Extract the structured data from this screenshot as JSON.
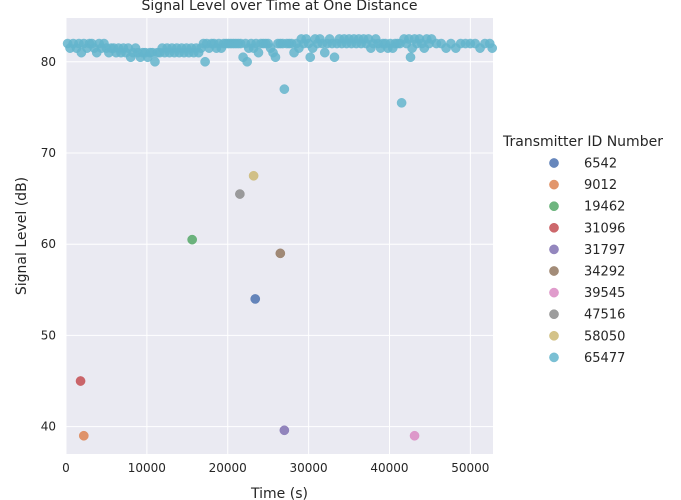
{
  "chart_data": {
    "type": "scatter",
    "title": "Signal Level over Time at One Distance",
    "xlabel": "Time (s)",
    "ylabel": "Signal Level (dB)",
    "xlim": [
      0,
      52800
    ],
    "ylim": [
      37,
      84.8
    ],
    "xticks": [
      0,
      10000,
      20000,
      30000,
      40000,
      50000
    ],
    "xtick_labels": [
      "0",
      "10000",
      "20000",
      "30000",
      "40000",
      "50000"
    ],
    "yticks": [
      40,
      50,
      60,
      70,
      80
    ],
    "ytick_labels": [
      "40",
      "50",
      "60",
      "70",
      "80"
    ],
    "grid": true,
    "legend": {
      "title": "Transmitter ID Number",
      "placement": "right"
    },
    "series": [
      {
        "name": "6542",
        "color": "#4c72b0",
        "points": [
          [
            23400,
            54
          ]
        ]
      },
      {
        "name": "9012",
        "color": "#dd8452",
        "points": [
          [
            2200,
            39
          ]
        ]
      },
      {
        "name": "19462",
        "color": "#55a868",
        "points": [
          [
            15600,
            60.5
          ]
        ]
      },
      {
        "name": "31096",
        "color": "#c44e52",
        "points": [
          [
            1800,
            45
          ]
        ]
      },
      {
        "name": "31797",
        "color": "#8172b3",
        "points": [
          [
            27000,
            39.6
          ]
        ]
      },
      {
        "name": "34292",
        "color": "#937860",
        "points": [
          [
            26500,
            59
          ]
        ]
      },
      {
        "name": "39545",
        "color": "#da8bc3",
        "points": [
          [
            43100,
            39
          ]
        ]
      },
      {
        "name": "47516",
        "color": "#8c8c8c",
        "points": [
          [
            21500,
            65.5
          ]
        ]
      },
      {
        "name": "58050",
        "color": "#ccb974",
        "points": [
          [
            23200,
            67.5
          ]
        ]
      },
      {
        "name": "65477",
        "color": "#64b5cd",
        "points": [
          [
            200,
            82
          ],
          [
            500,
            81.5
          ],
          [
            900,
            82
          ],
          [
            1300,
            81.5
          ],
          [
            1600,
            82
          ],
          [
            1900,
            81
          ],
          [
            2200,
            82
          ],
          [
            2600,
            81.5
          ],
          [
            2900,
            82
          ],
          [
            3200,
            82
          ],
          [
            3500,
            81.5
          ],
          [
            3800,
            81
          ],
          [
            4100,
            82
          ],
          [
            4400,
            81.5
          ],
          [
            4700,
            82
          ],
          [
            5000,
            81.5
          ],
          [
            5300,
            81
          ],
          [
            5600,
            81.5
          ],
          [
            5900,
            81.5
          ],
          [
            6200,
            81
          ],
          [
            6500,
            81.5
          ],
          [
            6800,
            81
          ],
          [
            7100,
            81.5
          ],
          [
            7400,
            81
          ],
          [
            7700,
            81.5
          ],
          [
            8000,
            80.5
          ],
          [
            8300,
            81
          ],
          [
            8600,
            81.5
          ],
          [
            8900,
            81
          ],
          [
            9200,
            80.5
          ],
          [
            9500,
            81
          ],
          [
            9800,
            81
          ],
          [
            10100,
            80.5
          ],
          [
            10400,
            81
          ],
          [
            10700,
            81
          ],
          [
            11000,
            80
          ],
          [
            11300,
            81
          ],
          [
            11600,
            81
          ],
          [
            11900,
            81.5
          ],
          [
            12200,
            81
          ],
          [
            12500,
            81.5
          ],
          [
            12800,
            81
          ],
          [
            13100,
            81.5
          ],
          [
            13400,
            81
          ],
          [
            13700,
            81.5
          ],
          [
            14000,
            81
          ],
          [
            14300,
            81.5
          ],
          [
            14600,
            81
          ],
          [
            14900,
            81.5
          ],
          [
            15200,
            81
          ],
          [
            15500,
            81.5
          ],
          [
            15800,
            81
          ],
          [
            16100,
            81.5
          ],
          [
            16400,
            81
          ],
          [
            16700,
            81.5
          ],
          [
            17000,
            82
          ],
          [
            17200,
            80
          ],
          [
            17400,
            82
          ],
          [
            17700,
            81.5
          ],
          [
            18000,
            82
          ],
          [
            18300,
            82
          ],
          [
            18600,
            81.5
          ],
          [
            18900,
            82
          ],
          [
            19200,
            81.5
          ],
          [
            19500,
            82
          ],
          [
            19800,
            82
          ],
          [
            20100,
            82
          ],
          [
            20400,
            82
          ],
          [
            20700,
            82
          ],
          [
            21000,
            82
          ],
          [
            21300,
            82
          ],
          [
            21600,
            82
          ],
          [
            21900,
            80.5
          ],
          [
            22200,
            82
          ],
          [
            22400,
            80
          ],
          [
            22600,
            81.5
          ],
          [
            22900,
            82
          ],
          [
            23200,
            81.5
          ],
          [
            23500,
            82
          ],
          [
            23800,
            81
          ],
          [
            24100,
            82
          ],
          [
            24400,
            82
          ],
          [
            24700,
            82
          ],
          [
            25000,
            82
          ],
          [
            25300,
            81.5
          ],
          [
            25600,
            81
          ],
          [
            25900,
            80.5
          ],
          [
            26200,
            82
          ],
          [
            26500,
            82
          ],
          [
            26800,
            82
          ],
          [
            27000,
            77
          ],
          [
            27300,
            82
          ],
          [
            27600,
            82
          ],
          [
            27900,
            82
          ],
          [
            28200,
            81
          ],
          [
            28500,
            82
          ],
          [
            28800,
            81.5
          ],
          [
            29100,
            82.5
          ],
          [
            29400,
            82
          ],
          [
            29700,
            82.5
          ],
          [
            30000,
            82
          ],
          [
            30200,
            80.5
          ],
          [
            30500,
            81.5
          ],
          [
            30800,
            82.5
          ],
          [
            31100,
            82
          ],
          [
            31400,
            82.5
          ],
          [
            31700,
            82
          ],
          [
            32000,
            81
          ],
          [
            32300,
            82
          ],
          [
            32600,
            82.5
          ],
          [
            32900,
            82
          ],
          [
            33200,
            80.5
          ],
          [
            33500,
            82
          ],
          [
            33800,
            82.5
          ],
          [
            34100,
            82
          ],
          [
            34400,
            82.5
          ],
          [
            34700,
            82
          ],
          [
            35000,
            82.5
          ],
          [
            35300,
            82
          ],
          [
            35600,
            82.5
          ],
          [
            35900,
            82
          ],
          [
            36200,
            82.5
          ],
          [
            36500,
            82
          ],
          [
            36800,
            82.5
          ],
          [
            37100,
            82
          ],
          [
            37400,
            82.5
          ],
          [
            37700,
            81.5
          ],
          [
            38000,
            82
          ],
          [
            38300,
            82.5
          ],
          [
            38600,
            82
          ],
          [
            38900,
            81.5
          ],
          [
            39200,
            82
          ],
          [
            39500,
            82
          ],
          [
            39800,
            81.5
          ],
          [
            40100,
            82
          ],
          [
            40400,
            81.5
          ],
          [
            40700,
            82
          ],
          [
            41000,
            82
          ],
          [
            41300,
            82
          ],
          [
            41500,
            75.5
          ],
          [
            41800,
            82.5
          ],
          [
            42100,
            82
          ],
          [
            42400,
            82.5
          ],
          [
            42600,
            80.5
          ],
          [
            42800,
            81.5
          ],
          [
            43100,
            82.5
          ],
          [
            43400,
            82
          ],
          [
            43700,
            82.5
          ],
          [
            44000,
            82
          ],
          [
            44300,
            81.5
          ],
          [
            44600,
            82.5
          ],
          [
            44900,
            82
          ],
          [
            45200,
            82.5
          ],
          [
            45800,
            82
          ],
          [
            46400,
            82
          ],
          [
            47000,
            81.5
          ],
          [
            47600,
            82
          ],
          [
            48200,
            81.5
          ],
          [
            48800,
            82
          ],
          [
            49400,
            82
          ],
          [
            50000,
            82
          ],
          [
            50600,
            82
          ],
          [
            51200,
            81.5
          ],
          [
            51800,
            82
          ],
          [
            52400,
            82
          ],
          [
            52700,
            81.5
          ]
        ]
      }
    ]
  }
}
